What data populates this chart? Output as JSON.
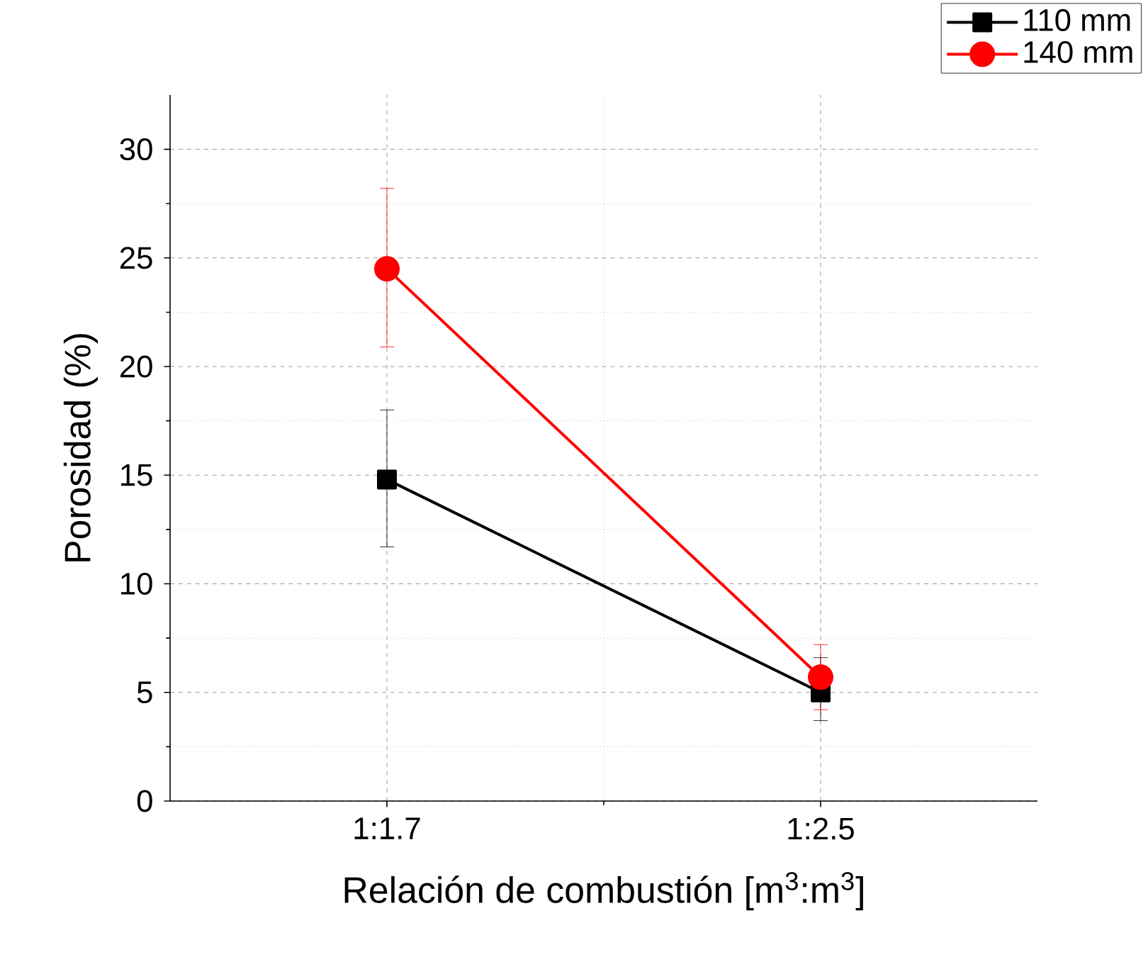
{
  "chart_data": {
    "type": "line",
    "xlabel": "Relación de combustión [m$^{3}$:m$^{3}$]",
    "ylabel": "Porosidad (%)",
    "categories": [
      "1:1.7",
      "1:2.5"
    ],
    "series": [
      {
        "name": "110 mm",
        "color": "#000000",
        "marker": "square",
        "values": [
          14.8,
          5.0
        ],
        "errors": [
          [
            11.7,
            18.0
          ],
          [
            3.7,
            6.6
          ]
        ]
      },
      {
        "name": "140 mm",
        "color": "#ff0000",
        "marker": "circle",
        "values": [
          24.5,
          5.7
        ],
        "errors": [
          [
            20.9,
            28.2
          ],
          [
            4.2,
            7.2
          ]
        ]
      }
    ],
    "ylim": [
      0,
      32.5
    ],
    "yticks": [
      0,
      5,
      10,
      15,
      20,
      25,
      30
    ],
    "grid": true,
    "legend": "top right",
    "line_style": "solid"
  }
}
